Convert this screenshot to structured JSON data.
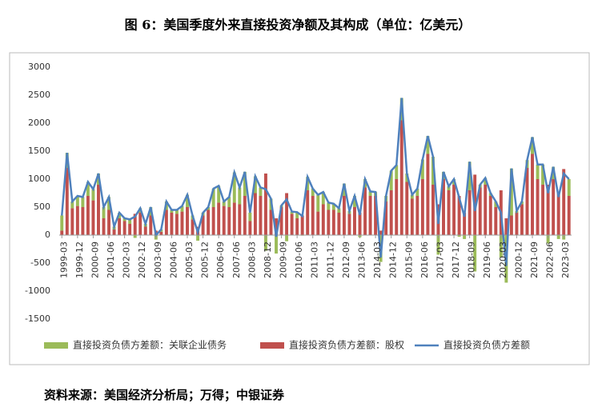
{
  "chart_data": {
    "type": "bar_line",
    "title": "图 6：美国季度外来直接投资净额及其构成（单位：亿美元）",
    "source": "资料来源：美国经济分析局；万得；中银证券",
    "categories": [
      "1999-03",
      null,
      null,
      "1999-12",
      null,
      null,
      "2000-09",
      null,
      null,
      "2001-06",
      null,
      null,
      "2002-03",
      null,
      null,
      "2002-12",
      null,
      null,
      "2003-09",
      null,
      null,
      "2004-06",
      null,
      null,
      "2005-03",
      null,
      null,
      "2005-12",
      null,
      null,
      "2006-09",
      null,
      null,
      "2007-06",
      null,
      null,
      "2008-03",
      null,
      null,
      "2008-12",
      null,
      null,
      "2009-09",
      null,
      null,
      "2010-06",
      null,
      null,
      "2011-03",
      null,
      null,
      "2011-12",
      null,
      null,
      "2012-09",
      null,
      null,
      "2013-06",
      null,
      null,
      "2014-03",
      null,
      null,
      "2014-12",
      null,
      null,
      "2015-09",
      null,
      null,
      "2016-06",
      null,
      null,
      "2017-03",
      null,
      null,
      "2017-12",
      null,
      null,
      "2018-09",
      null,
      null,
      "2019-06",
      null,
      null,
      "2020-03",
      null,
      null,
      "2020-12",
      null,
      null,
      "2021-09",
      null,
      null,
      "2022-06",
      null,
      null,
      "2023-03",
      null
    ],
    "series": [
      {
        "name": "直接投资负债方差额：关联企业债务",
        "color": "#9bbb59",
        "kind": "bar",
        "values": [
          270,
          270,
          120,
          180,
          180,
          250,
          200,
          200,
          200,
          230,
          50,
          100,
          50,
          80,
          -50,
          80,
          50,
          150,
          -80,
          40,
          150,
          50,
          70,
          100,
          220,
          70,
          -100,
          50,
          50,
          330,
          300,
          80,
          180,
          540,
          300,
          430,
          150,
          300,
          150,
          -280,
          200,
          -330,
          30,
          -110,
          40,
          110,
          -10,
          240,
          130,
          300,
          220,
          130,
          110,
          80,
          220,
          50,
          200,
          -40,
          150,
          80,
          70,
          -480,
          100,
          350,
          250,
          400,
          150,
          70,
          130,
          350,
          320,
          500,
          -350,
          130,
          70,
          100,
          -30,
          -70,
          510,
          -650,
          50,
          120,
          50,
          100,
          -400,
          -850,
          840,
          30,
          50,
          140,
          300,
          260,
          360,
          -150,
          220,
          -70,
          -80,
          300
        ]
      },
      {
        "name": "直接投资负债方差额：股权",
        "color": "#c0504d",
        "kind": "bar",
        "values": [
          80,
          1200,
          480,
          520,
          500,
          700,
          620,
          900,
          300,
          450,
          100,
          300,
          250,
          200,
          380,
          400,
          150,
          350,
          80,
          60,
          450,
          400,
          380,
          420,
          500,
          280,
          150,
          350,
          450,
          500,
          580,
          520,
          500,
          580,
          550,
          700,
          250,
          750,
          700,
          1100,
          450,
          300,
          500,
          750,
          380,
          300,
          350,
          800,
          700,
          420,
          550,
          450,
          450,
          400,
          700,
          380,
          500,
          400,
          850,
          700,
          700,
          80,
          600,
          800,
          1000,
          2050,
          950,
          650,
          700,
          1000,
          1450,
          900,
          550,
          1000,
          800,
          900,
          700,
          400,
          800,
          1080,
          850,
          900,
          700,
          500,
          800,
          300,
          350,
          400,
          550,
          1200,
          1450,
          1000,
          900,
          900,
          1000,
          750,
          1180,
          700
        ]
      },
      {
        "name": "直接投资负债方差额",
        "color": "#4f81bd",
        "kind": "line",
        "values": [
          350,
          1470,
          600,
          700,
          680,
          950,
          820,
          1100,
          500,
          680,
          150,
          400,
          300,
          280,
          330,
          480,
          200,
          500,
          0,
          100,
          600,
          450,
          450,
          520,
          720,
          350,
          50,
          400,
          500,
          830,
          880,
          600,
          680,
          1120,
          850,
          1130,
          400,
          1050,
          850,
          820,
          650,
          -30,
          530,
          640,
          420,
          410,
          340,
          1040,
          830,
          720,
          770,
          580,
          560,
          480,
          920,
          430,
          700,
          360,
          1000,
          780,
          770,
          -400,
          700,
          1150,
          1250,
          2450,
          1100,
          720,
          830,
          1350,
          1770,
          1400,
          200,
          1130,
          870,
          1000,
          670,
          330,
          1310,
          430,
          900,
          1020,
          750,
          600,
          400,
          -550,
          1190,
          430,
          600,
          1340,
          1750,
          1260,
          1260,
          750,
          1220,
          680,
          1100,
          1000
        ]
      }
    ],
    "ylim": [
      -1500,
      3000
    ],
    "yticks": [
      -1500,
      -1000,
      -500,
      0,
      500,
      1000,
      1500,
      2000,
      2500,
      3000
    ],
    "grid": false,
    "legend": "bottom"
  }
}
